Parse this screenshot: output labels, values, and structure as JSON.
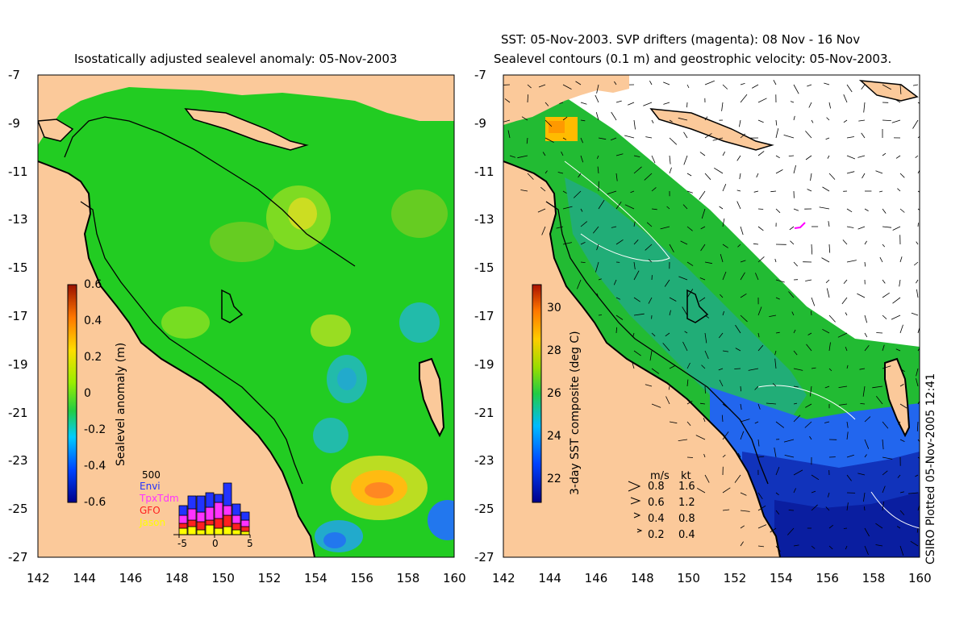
{
  "left_panel": {
    "title": "Isostatically adjusted sealevel anomaly: 05-Nov-2003",
    "colorbar": {
      "label": "Sealevel anomaly (m)",
      "ticks": [
        "0.6",
        "0.4",
        "0.2",
        "0",
        "-0.2",
        "-0.4",
        "-0.6"
      ]
    },
    "histogram": {
      "ymax_label": "500",
      "satellites": [
        {
          "name": "Envi",
          "color": "#2233ff"
        },
        {
          "name": "TpxTdm",
          "color": "#ff33ff"
        },
        {
          "name": "GFO",
          "color": "#ff2020"
        },
        {
          "name": "Jason",
          "color": "#ffff00"
        }
      ],
      "x_ticks": [
        "-5",
        "0",
        "5"
      ]
    }
  },
  "right_panel": {
    "title_line1": "SST: 05-Nov-2003. SVP drifters (magenta): 08 Nov - 16 Nov",
    "title_line2": "Sealevel contours (0.1 m) and geostrophic velocity: 05-Nov-2003.",
    "colorbar": {
      "label": "3-day SST composite (deg C)",
      "ticks": [
        "30",
        "28",
        "26",
        "24",
        "22"
      ]
    },
    "velocity_legend": {
      "header_ms": "m/s",
      "header_kt": "kt",
      "rows": [
        {
          "ms": "0.8",
          "kt": "1.6"
        },
        {
          "ms": "0.6",
          "kt": "1.2"
        },
        {
          "ms": "0.4",
          "kt": "0.8"
        },
        {
          "ms": "0.2",
          "kt": "0.4"
        }
      ]
    }
  },
  "axes": {
    "y_ticks": [
      "-7",
      "-9",
      "-11",
      "-13",
      "-15",
      "-17",
      "-19",
      "-21",
      "-23",
      "-25",
      "-27"
    ],
    "x_ticks": [
      "142",
      "144",
      "146",
      "148",
      "150",
      "152",
      "154",
      "156",
      "158",
      "160"
    ]
  },
  "credit": "CSIRO Plotted 05-Nov-2005 12:41",
  "colors": {
    "land": "#fbc99a",
    "ocean_green": "#22cc22",
    "no_data": "#ffffff",
    "deep_blue": "#0a1ea0"
  }
}
